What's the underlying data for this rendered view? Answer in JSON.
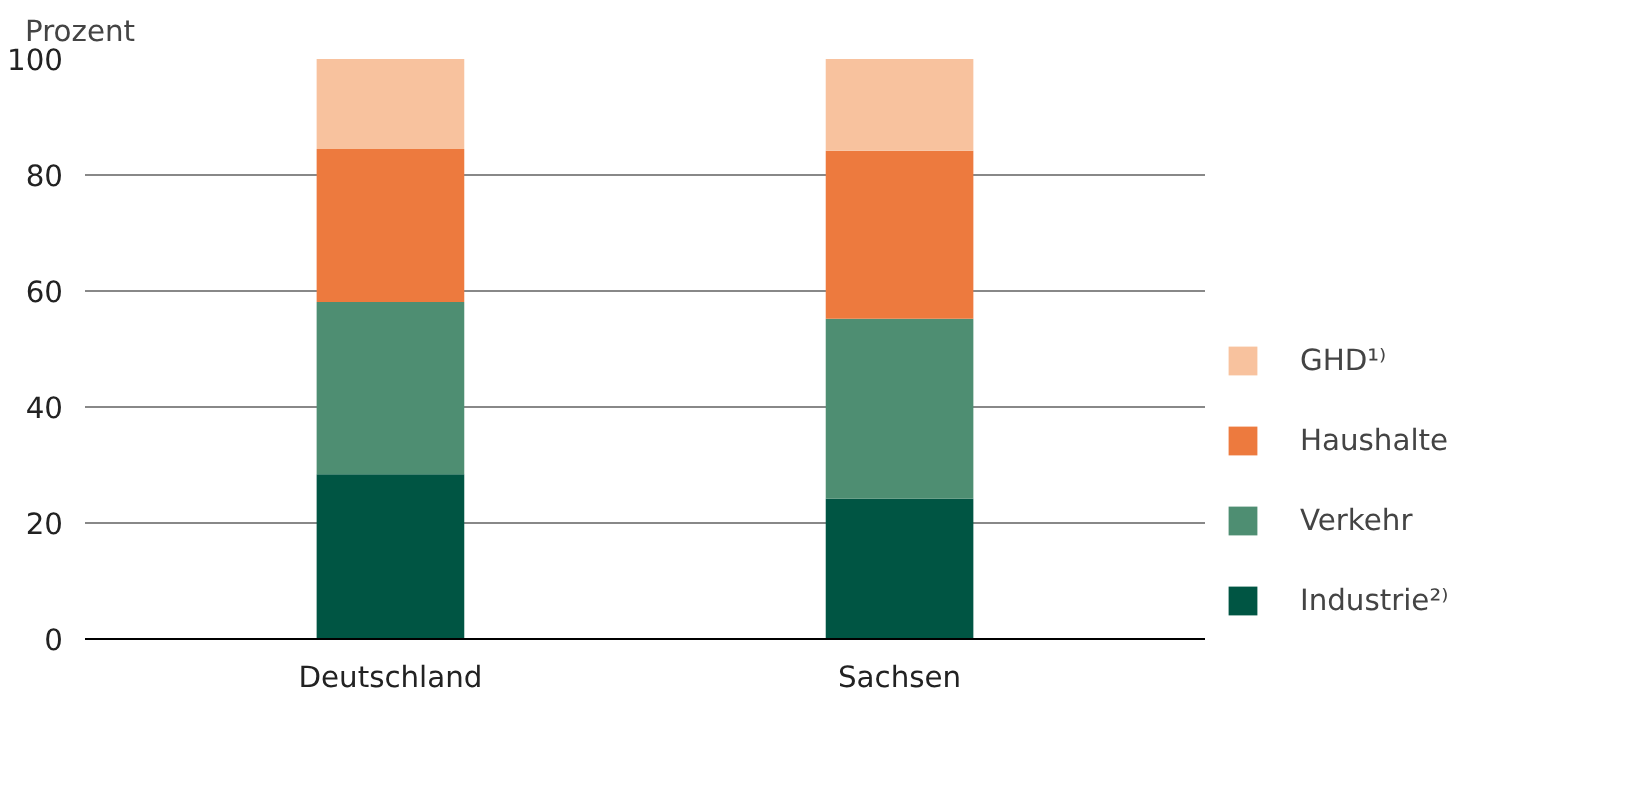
{
  "chart_data": {
    "type": "bar",
    "stacked": true,
    "ylabel": "Prozent",
    "categories": [
      "Deutschland",
      "Sachsen"
    ],
    "series": [
      {
        "name": "Industrie²⁾",
        "color": "#005543",
        "values": [
          28.4,
          24.2
        ]
      },
      {
        "name": "Verkehr",
        "color": "#4e8e72",
        "values": [
          29.7,
          31.0
        ]
      },
      {
        "name": "Haushalte",
        "color": "#ed7a3e",
        "values": [
          26.4,
          29.0
        ]
      },
      {
        "name": "GHD¹⁾",
        "color": "#f8c29e",
        "values": [
          15.5,
          15.8
        ]
      }
    ],
    "ylim": [
      0,
      100
    ],
    "yticks": [
      0,
      20,
      40,
      60,
      80,
      100
    ],
    "grid": "y",
    "legend": "right"
  }
}
